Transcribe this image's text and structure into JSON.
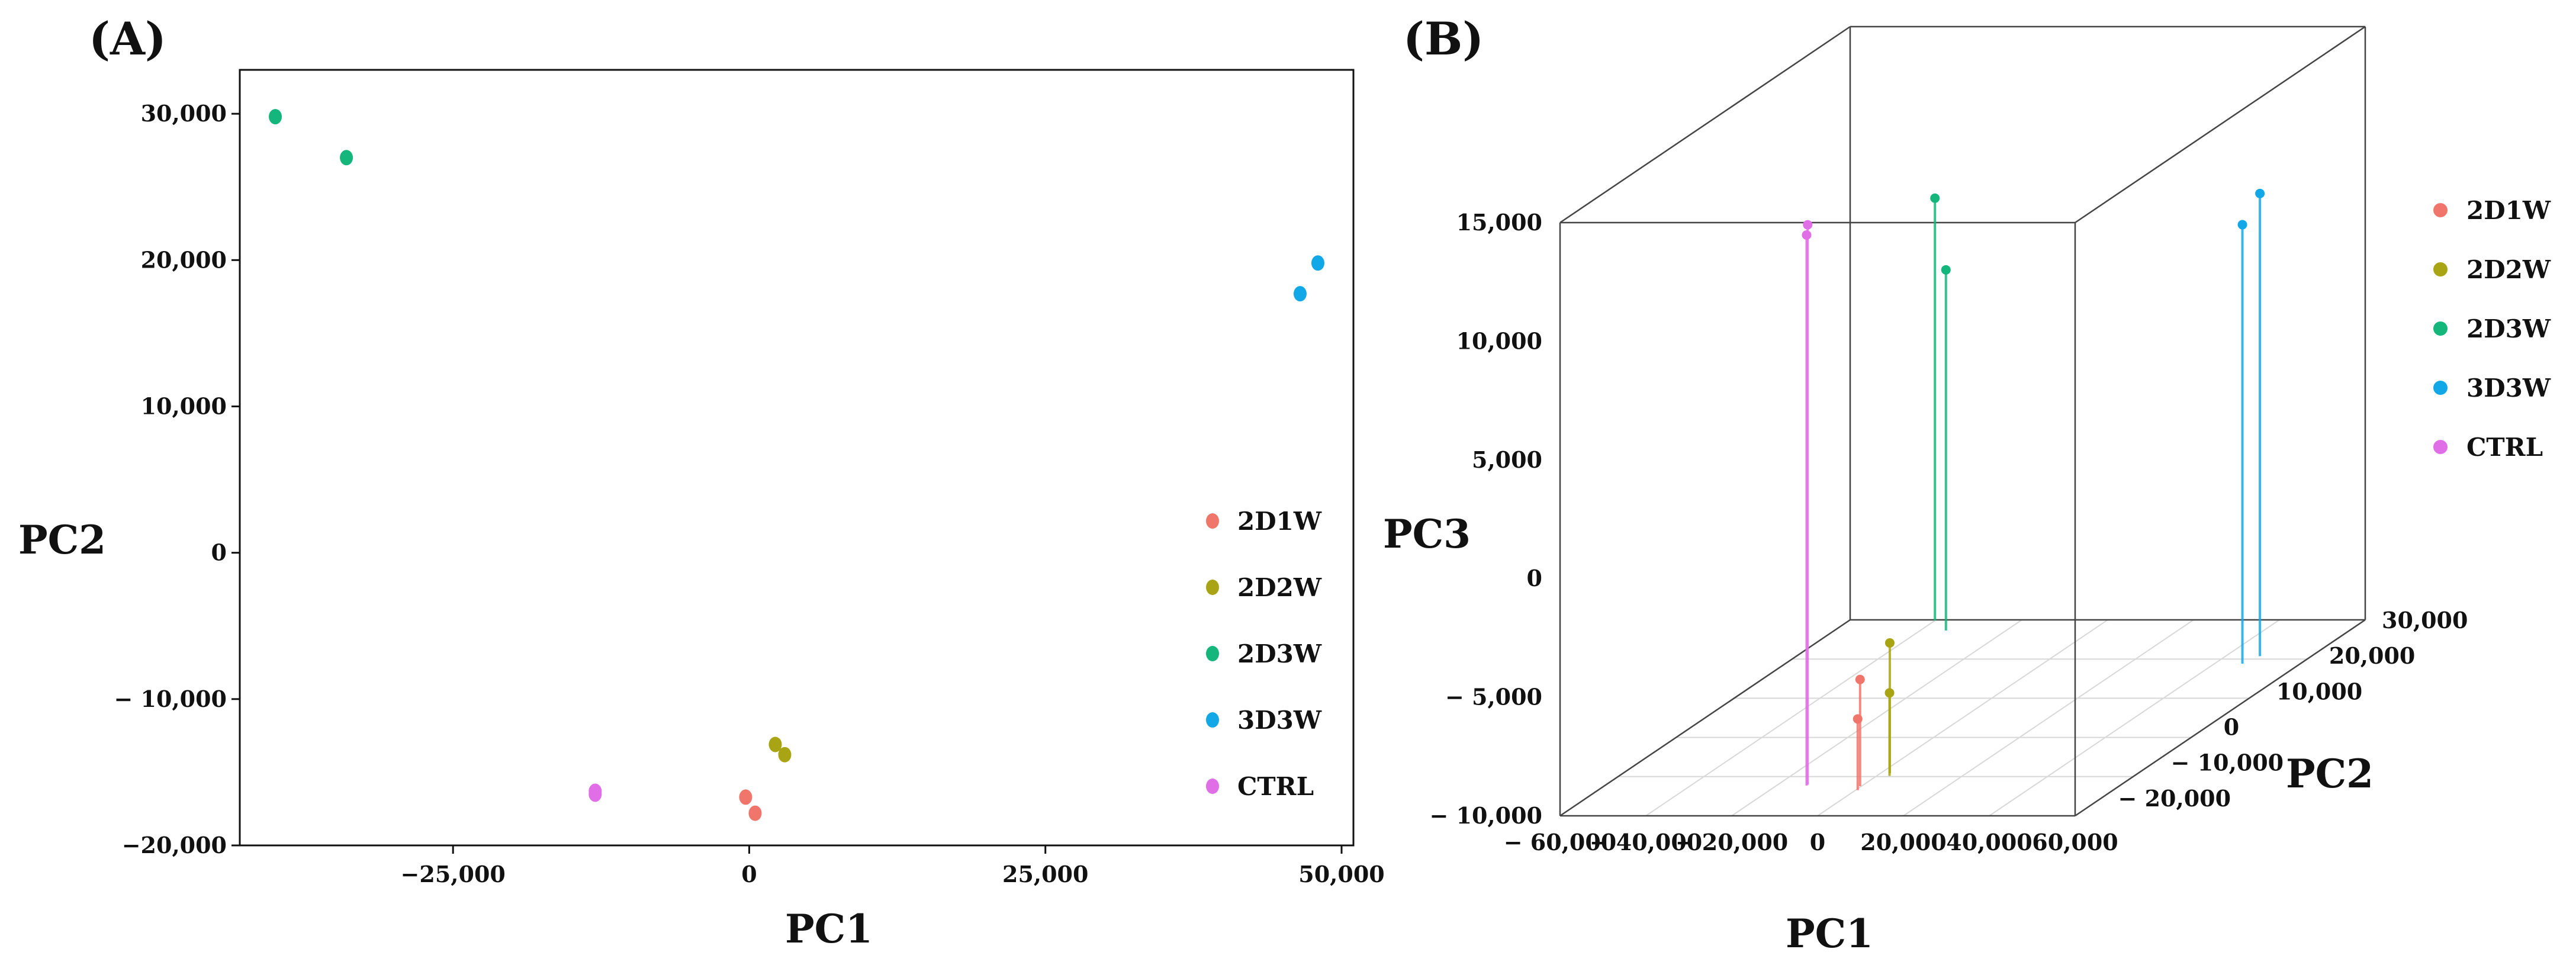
{
  "chart_data": [
    {
      "panel_label": "(A)",
      "type": "scatter",
      "xlabel": "PC1",
      "ylabel": "PC2",
      "xlim": [
        -43000,
        51000
      ],
      "ylim": [
        -20000,
        33000
      ],
      "xticks": [
        {
          "value": -25000,
          "label": "−25,000"
        },
        {
          "value": 0,
          "label": "0"
        },
        {
          "value": 25000,
          "label": "25,000"
        },
        {
          "value": 50000,
          "label": "50,000"
        }
      ],
      "yticks": [
        {
          "value": 30000,
          "label": "30,000"
        },
        {
          "value": 20000,
          "label": "20,000"
        },
        {
          "value": 10000,
          "label": "10,000"
        },
        {
          "value": 0,
          "label": "0"
        },
        {
          "value": -10000,
          "label": "− 10,000"
        },
        {
          "value": -20000,
          "label": "−20,000"
        }
      ],
      "legend": {
        "position": "right-bottom",
        "entries": [
          "2D1W",
          "2D2W",
          "2D3W",
          "3D3W",
          "CTRL"
        ]
      },
      "series": [
        {
          "name": "2D1W",
          "color": "#f0766b",
          "points": [
            {
              "x": -300,
              "y": -16700
            },
            {
              "x": 500,
              "y": -17800
            }
          ]
        },
        {
          "name": "2D2W",
          "color": "#a8a414",
          "points": [
            {
              "x": 2200,
              "y": -13100
            },
            {
              "x": 3000,
              "y": -13800
            }
          ]
        },
        {
          "name": "2D3W",
          "color": "#14b67c",
          "points": [
            {
              "x": -40000,
              "y": 29800
            },
            {
              "x": -34000,
              "y": 27000
            }
          ]
        },
        {
          "name": "3D3W",
          "color": "#12a8e8",
          "points": [
            {
              "x": 46500,
              "y": 17700
            },
            {
              "x": 48000,
              "y": 19800
            }
          ]
        },
        {
          "name": "CTRL",
          "color": "#e06ee6",
          "points": [
            {
              "x": -13000,
              "y": -16500
            },
            {
              "x": -13000,
              "y": -16300
            }
          ]
        }
      ]
    },
    {
      "panel_label": "(B)",
      "type": "scatter3d",
      "xlabel": "PC1",
      "ylabel": "PC2",
      "zlabel": "PC3",
      "xlim": [
        -60000,
        60000
      ],
      "ylim": [
        -25000,
        30000
      ],
      "zlim": [
        -10000,
        15000
      ],
      "xticks": [
        {
          "value": -60000,
          "label": "− 60,000"
        },
        {
          "value": -40000,
          "label": "− 40,000"
        },
        {
          "value": -20000,
          "label": "− 20,000"
        },
        {
          "value": 0,
          "label": "0"
        },
        {
          "value": 20000,
          "label": "20,000"
        },
        {
          "value": 40000,
          "label": "40,000"
        },
        {
          "value": 60000,
          "label": "60,000"
        }
      ],
      "yticks": [
        {
          "value": 30000,
          "label": "30,000"
        },
        {
          "value": 20000,
          "label": "20,000"
        },
        {
          "value": 10000,
          "label": "10,000"
        },
        {
          "value": 0,
          "label": "0"
        },
        {
          "value": -10000,
          "label": "− 10,000"
        },
        {
          "value": -20000,
          "label": "− 20,000"
        }
      ],
      "zticks": [
        {
          "value": 15000,
          "label": "15,000"
        },
        {
          "value": 10000,
          "label": "10,000"
        },
        {
          "value": 5000,
          "label": "5,000"
        },
        {
          "value": 0,
          "label": "0"
        },
        {
          "value": -5000,
          "label": "− 5,000"
        },
        {
          "value": -10000,
          "label": "− 10,000"
        }
      ],
      "legend": {
        "position": "right-top",
        "entries": [
          "2D1W",
          "2D2W",
          "2D3W",
          "3D3W",
          "CTRL"
        ]
      },
      "series": [
        {
          "name": "2D1W",
          "color": "#f0766b",
          "points": [
            {
              "x": -300,
              "y": -16700,
              "z": -5500
            },
            {
              "x": 500,
              "y": -17800,
              "z": -7000
            }
          ]
        },
        {
          "name": "2D2W",
          "color": "#a8a414",
          "points": [
            {
              "x": 2200,
              "y": -13100,
              "z": -4500
            },
            {
              "x": 3000,
              "y": -13800,
              "z": -6500
            }
          ]
        },
        {
          "name": "2D3W",
          "color": "#14b67c",
          "points": [
            {
              "x": -40000,
              "y": 29800,
              "z": 7800
            },
            {
              "x": -34000,
              "y": 27000,
              "z": 5200
            }
          ]
        },
        {
          "name": "3D3W",
          "color": "#12a8e8",
          "points": [
            {
              "x": 46500,
              "y": 17700,
              "z": 8500
            },
            {
              "x": 48000,
              "y": 19800,
              "z": 9500
            }
          ]
        },
        {
          "name": "CTRL",
          "color": "#e06ee6",
          "points": [
            {
              "x": -13000,
              "y": -16500,
              "z": 13200
            },
            {
              "x": -13000,
              "y": -16300,
              "z": 13600
            }
          ]
        }
      ]
    }
  ]
}
